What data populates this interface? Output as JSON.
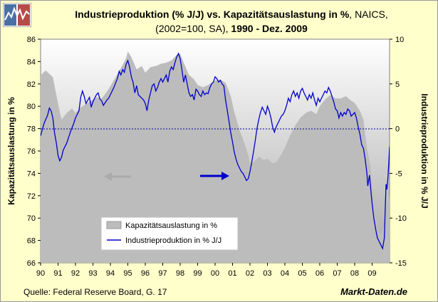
{
  "header": {
    "title_bold": "Industrieproduktion (% J/J) vs. Kapazitätsauslastung in %",
    "title_normal": ", NAICS,",
    "subtitle_normal": "(2002=100, SA),",
    "subtitle_bold": "1990 - Dez. 2009"
  },
  "footer": {
    "source": "Quelle: Federal Reserve Board, G. 17",
    "brand": "Markt-Daten.de"
  },
  "colors": {
    "background": "#ffffcc",
    "plot_top": "#ffffff",
    "plot_bottom": "#a8a8a8",
    "area": "#bcbcbc",
    "line": "#0000cc",
    "zero_line": "#000099"
  },
  "chart_data": {
    "type": "line",
    "title": "Industrieproduktion (% J/J) vs. Kapazitätsauslastung in %, NAICS, (2002=100, SA), 1990 - Dez. 2009",
    "x_ticks": [
      "90",
      "91",
      "92",
      "93",
      "94",
      "95",
      "96",
      "97",
      "98",
      "99",
      "00",
      "01",
      "02",
      "03",
      "04",
      "05",
      "06",
      "07",
      "08",
      "09"
    ],
    "y_left": {
      "label": "Kapazitätsauslastung in %",
      "range": [
        66,
        86
      ],
      "ticks": [
        66,
        68,
        70,
        72,
        74,
        76,
        78,
        80,
        82,
        84,
        86
      ]
    },
    "y_right": {
      "label": "Industrieproduktion in % J/J",
      "range": [
        -15,
        10
      ],
      "ticks": [
        -15,
        -10,
        -5,
        0,
        5,
        10
      ]
    },
    "zero_reference": 0,
    "arrows": [
      {
        "direction": "left",
        "color": "gray",
        "points_to": "Kapazitätsauslastung in %"
      },
      {
        "direction": "right",
        "color": "blue",
        "points_to": "Industrieproduktion in % J/J"
      }
    ],
    "legend": {
      "placement": "lower-left",
      "entries": [
        "Kapazitätsauslastung in %",
        "Industrieproduktion in % J/J"
      ]
    },
    "series": [
      {
        "name": "Kapazitätsauslastung in %",
        "kind": "area",
        "axis": "left",
        "points": [
          [
            1990.0,
            82.8
          ],
          [
            1990.3,
            83.2
          ],
          [
            1990.7,
            82.6
          ],
          [
            1990.9,
            81.0
          ],
          [
            1991.1,
            79.5
          ],
          [
            1991.2,
            78.8
          ],
          [
            1991.5,
            79.4
          ],
          [
            1991.8,
            79.8
          ],
          [
            1992.0,
            79.4
          ],
          [
            1992.3,
            79.9
          ],
          [
            1992.6,
            80.2
          ],
          [
            1992.9,
            80.5
          ],
          [
            1993.2,
            80.8
          ],
          [
            1993.5,
            80.7
          ],
          [
            1993.8,
            81.3
          ],
          [
            1994.0,
            81.8
          ],
          [
            1994.3,
            82.6
          ],
          [
            1994.6,
            83.4
          ],
          [
            1994.9,
            84.3
          ],
          [
            1995.0,
            84.9
          ],
          [
            1995.2,
            84.4
          ],
          [
            1995.5,
            83.3
          ],
          [
            1995.8,
            83.6
          ],
          [
            1996.0,
            83.0
          ],
          [
            1996.3,
            83.5
          ],
          [
            1996.6,
            83.6
          ],
          [
            1996.9,
            83.8
          ],
          [
            1997.2,
            83.9
          ],
          [
            1997.5,
            84.1
          ],
          [
            1997.8,
            84.6
          ],
          [
            1998.0,
            84.7
          ],
          [
            1998.2,
            83.9
          ],
          [
            1998.5,
            82.8
          ],
          [
            1998.8,
            82.4
          ],
          [
            1999.0,
            81.9
          ],
          [
            1999.3,
            81.7
          ],
          [
            1999.6,
            81.9
          ],
          [
            1999.9,
            82.2
          ],
          [
            2000.0,
            82.3
          ],
          [
            2000.3,
            82.4
          ],
          [
            2000.6,
            82.1
          ],
          [
            2000.9,
            80.9
          ],
          [
            2001.1,
            79.5
          ],
          [
            2001.4,
            77.9
          ],
          [
            2001.7,
            76.6
          ],
          [
            2001.9,
            75.6
          ],
          [
            2002.0,
            74.9
          ],
          [
            2002.2,
            75.0
          ],
          [
            2002.5,
            75.5
          ],
          [
            2002.8,
            75.2
          ],
          [
            2003.0,
            75.3
          ],
          [
            2003.3,
            74.9
          ],
          [
            2003.5,
            75.0
          ],
          [
            2003.8,
            75.7
          ],
          [
            2004.0,
            76.3
          ],
          [
            2004.3,
            77.4
          ],
          [
            2004.6,
            78.3
          ],
          [
            2004.9,
            79.0
          ],
          [
            2005.2,
            79.4
          ],
          [
            2005.5,
            79.6
          ],
          [
            2005.8,
            79.3
          ],
          [
            2006.0,
            80.0
          ],
          [
            2006.3,
            80.6
          ],
          [
            2006.6,
            81.0
          ],
          [
            2006.9,
            80.7
          ],
          [
            2007.2,
            80.7
          ],
          [
            2007.5,
            80.9
          ],
          [
            2007.8,
            80.5
          ],
          [
            2008.0,
            80.3
          ],
          [
            2008.3,
            79.6
          ],
          [
            2008.5,
            78.8
          ],
          [
            2008.7,
            76.3
          ],
          [
            2008.9,
            74.7
          ],
          [
            2009.0,
            72.8
          ],
          [
            2009.2,
            70.3
          ],
          [
            2009.4,
            68.7
          ],
          [
            2009.5,
            68.6
          ],
          [
            2009.7,
            69.5
          ],
          [
            2009.85,
            70.9
          ],
          [
            2010.0,
            72.0
          ]
        ]
      },
      {
        "name": "Industrieproduktion in % J/J",
        "kind": "line",
        "axis": "right",
        "points": [
          [
            1990.0,
            -0.8
          ],
          [
            1990.2,
            0.6
          ],
          [
            1990.4,
            1.5
          ],
          [
            1990.5,
            2.3
          ],
          [
            1990.6,
            2.0
          ],
          [
            1990.7,
            1.2
          ],
          [
            1990.8,
            -0.5
          ],
          [
            1990.9,
            -1.6
          ],
          [
            1991.0,
            -3.0
          ],
          [
            1991.1,
            -3.6
          ],
          [
            1991.2,
            -3.2
          ],
          [
            1991.3,
            -2.4
          ],
          [
            1991.5,
            -1.6
          ],
          [
            1991.7,
            -0.4
          ],
          [
            1991.9,
            0.6
          ],
          [
            1992.0,
            1.2
          ],
          [
            1992.2,
            2.0
          ],
          [
            1992.3,
            3.5
          ],
          [
            1992.4,
            4.2
          ],
          [
            1992.5,
            3.6
          ],
          [
            1992.6,
            2.8
          ],
          [
            1992.8,
            3.5
          ],
          [
            1992.9,
            2.4
          ],
          [
            1993.0,
            3.0
          ],
          [
            1993.2,
            3.8
          ],
          [
            1993.3,
            4.0
          ],
          [
            1993.4,
            3.3
          ],
          [
            1993.5,
            3.1
          ],
          [
            1993.6,
            2.6
          ],
          [
            1993.8,
            3.2
          ],
          [
            1993.9,
            3.4
          ],
          [
            1994.0,
            3.8
          ],
          [
            1994.2,
            4.6
          ],
          [
            1994.4,
            5.6
          ],
          [
            1994.5,
            6.4
          ],
          [
            1994.6,
            6.0
          ],
          [
            1994.7,
            6.6
          ],
          [
            1994.8,
            6.3
          ],
          [
            1994.9,
            7.2
          ],
          [
            1995.0,
            7.6
          ],
          [
            1995.1,
            6.9
          ],
          [
            1995.2,
            5.8
          ],
          [
            1995.3,
            5.2
          ],
          [
            1995.4,
            4.0
          ],
          [
            1995.5,
            4.8
          ],
          [
            1995.6,
            3.8
          ],
          [
            1995.8,
            3.4
          ],
          [
            1995.9,
            3.2
          ],
          [
            1996.0,
            2.8
          ],
          [
            1996.1,
            2.0
          ],
          [
            1996.2,
            3.2
          ],
          [
            1996.3,
            4.0
          ],
          [
            1996.4,
            4.8
          ],
          [
            1996.5,
            5.0
          ],
          [
            1996.6,
            4.2
          ],
          [
            1996.7,
            4.6
          ],
          [
            1996.8,
            5.2
          ],
          [
            1996.9,
            5.6
          ],
          [
            1997.0,
            5.2
          ],
          [
            1997.1,
            5.6
          ],
          [
            1997.2,
            6.0
          ],
          [
            1997.3,
            5.2
          ],
          [
            1997.4,
            6.4
          ],
          [
            1997.5,
            6.9
          ],
          [
            1997.6,
            6.6
          ],
          [
            1997.7,
            7.4
          ],
          [
            1997.8,
            8.0
          ],
          [
            1997.9,
            8.4
          ],
          [
            1998.0,
            7.8
          ],
          [
            1998.1,
            6.6
          ],
          [
            1998.2,
            5.2
          ],
          [
            1998.3,
            6.0
          ],
          [
            1998.4,
            5.0
          ],
          [
            1998.5,
            4.0
          ],
          [
            1998.6,
            3.6
          ],
          [
            1998.7,
            3.8
          ],
          [
            1998.8,
            3.2
          ],
          [
            1998.9,
            4.4
          ],
          [
            1999.0,
            4.2
          ],
          [
            1999.1,
            3.8
          ],
          [
            1999.2,
            3.6
          ],
          [
            1999.3,
            4.2
          ],
          [
            1999.4,
            3.8
          ],
          [
            1999.5,
            4.0
          ],
          [
            1999.6,
            3.9
          ],
          [
            1999.7,
            4.6
          ],
          [
            1999.8,
            5.0
          ],
          [
            1999.9,
            5.2
          ],
          [
            2000.0,
            5.8
          ],
          [
            2000.1,
            5.6
          ],
          [
            2000.2,
            5.2
          ],
          [
            2000.3,
            5.4
          ],
          [
            2000.4,
            5.0
          ],
          [
            2000.5,
            4.8
          ],
          [
            2000.6,
            3.2
          ],
          [
            2000.7,
            2.0
          ],
          [
            2000.8,
            0.8
          ],
          [
            2000.9,
            -0.5
          ],
          [
            2001.0,
            -1.5
          ],
          [
            2001.1,
            -2.6
          ],
          [
            2001.2,
            -3.4
          ],
          [
            2001.3,
            -4.0
          ],
          [
            2001.4,
            -4.4
          ],
          [
            2001.5,
            -4.8
          ],
          [
            2001.6,
            -5.0
          ],
          [
            2001.7,
            -5.4
          ],
          [
            2001.8,
            -5.8
          ],
          [
            2001.9,
            -5.6
          ],
          [
            2002.0,
            -4.8
          ],
          [
            2002.1,
            -3.8
          ],
          [
            2002.2,
            -2.6
          ],
          [
            2002.3,
            -1.4
          ],
          [
            2002.4,
            0.0
          ],
          [
            2002.5,
            1.0
          ],
          [
            2002.6,
            1.8
          ],
          [
            2002.7,
            2.4
          ],
          [
            2002.8,
            2.0
          ],
          [
            2002.9,
            1.6
          ],
          [
            2003.0,
            2.5
          ],
          [
            2003.1,
            2.0
          ],
          [
            2003.2,
            1.2
          ],
          [
            2003.3,
            0.2
          ],
          [
            2003.4,
            -0.4
          ],
          [
            2003.5,
            0.2
          ],
          [
            2003.6,
            0.6
          ],
          [
            2003.7,
            1.0
          ],
          [
            2003.8,
            1.4
          ],
          [
            2003.9,
            1.6
          ],
          [
            2004.0,
            2.0
          ],
          [
            2004.1,
            2.6
          ],
          [
            2004.2,
            3.4
          ],
          [
            2004.3,
            3.0
          ],
          [
            2004.4,
            3.8
          ],
          [
            2004.5,
            4.2
          ],
          [
            2004.6,
            3.6
          ],
          [
            2004.7,
            4.0
          ],
          [
            2004.8,
            3.4
          ],
          [
            2004.9,
            4.2
          ],
          [
            2005.0,
            4.5
          ],
          [
            2005.1,
            4.0
          ],
          [
            2005.2,
            3.6
          ],
          [
            2005.3,
            3.2
          ],
          [
            2005.4,
            3.8
          ],
          [
            2005.5,
            3.4
          ],
          [
            2005.6,
            4.0
          ],
          [
            2005.7,
            3.2
          ],
          [
            2005.8,
            2.6
          ],
          [
            2005.9,
            3.4
          ],
          [
            2006.0,
            3.0
          ],
          [
            2006.1,
            3.4
          ],
          [
            2006.2,
            3.8
          ],
          [
            2006.3,
            4.2
          ],
          [
            2006.4,
            4.0
          ],
          [
            2006.5,
            4.6
          ],
          [
            2006.6,
            4.2
          ],
          [
            2006.7,
            3.6
          ],
          [
            2006.8,
            3.0
          ],
          [
            2006.9,
            2.2
          ],
          [
            2007.0,
            2.0
          ],
          [
            2007.1,
            1.2
          ],
          [
            2007.2,
            1.8
          ],
          [
            2007.3,
            1.4
          ],
          [
            2007.4,
            1.8
          ],
          [
            2007.5,
            1.6
          ],
          [
            2007.6,
            2.2
          ],
          [
            2007.7,
            2.0
          ],
          [
            2007.8,
            1.4
          ],
          [
            2007.9,
            1.6
          ],
          [
            2008.0,
            1.8
          ],
          [
            2008.1,
            1.2
          ],
          [
            2008.2,
            0.2
          ],
          [
            2008.3,
            -0.6
          ],
          [
            2008.4,
            -1.8
          ],
          [
            2008.5,
            -2.2
          ],
          [
            2008.6,
            -3.4
          ],
          [
            2008.7,
            -5.0
          ],
          [
            2008.75,
            -6.4
          ],
          [
            2008.85,
            -5.2
          ],
          [
            2008.95,
            -7.4
          ],
          [
            2009.0,
            -8.4
          ],
          [
            2009.1,
            -10.0
          ],
          [
            2009.2,
            -11.2
          ],
          [
            2009.3,
            -12.2
          ],
          [
            2009.4,
            -12.6
          ],
          [
            2009.5,
            -13.0
          ],
          [
            2009.6,
            -13.4
          ],
          [
            2009.7,
            -12.2
          ],
          [
            2009.75,
            -9.0
          ],
          [
            2009.8,
            -6.2
          ],
          [
            2009.85,
            -6.8
          ],
          [
            2009.9,
            -5.6
          ],
          [
            2009.95,
            -4.0
          ],
          [
            2010.0,
            -2.0
          ]
        ]
      }
    ]
  }
}
